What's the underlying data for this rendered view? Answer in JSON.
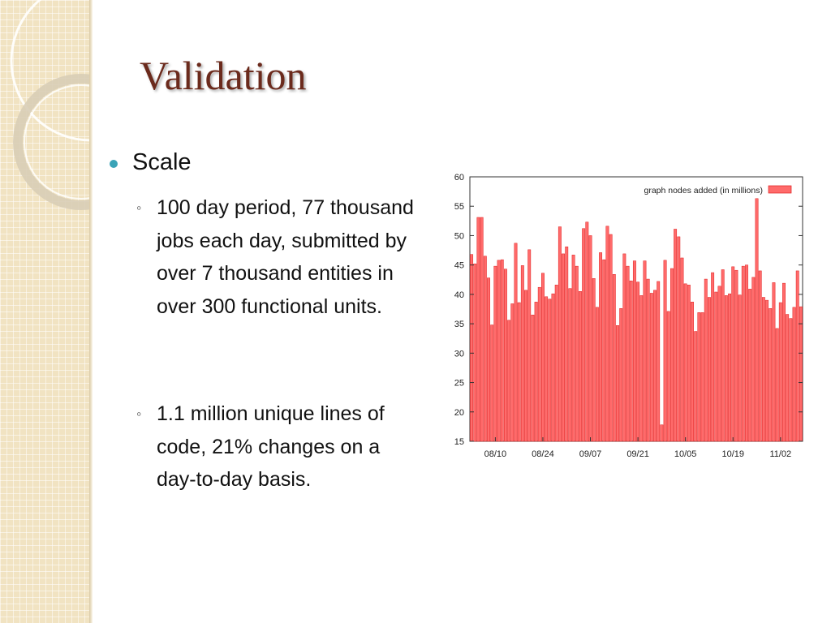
{
  "slide": {
    "title": "Validation",
    "bullet": "Scale",
    "sub_bullets": [
      "100 day period, 77 thousand jobs each day, submitted by over 7 thousand entities in over 300 functional units.",
      "1.1 million unique lines of code, 21% changes on a day-to-day basis."
    ],
    "sub_marker": "◦"
  },
  "colors": {
    "title": "#6b2a1c",
    "bullet_dot": "#3aa3b7",
    "bar_fill": "#ff6b6b",
    "bar_stroke": "#e02020"
  },
  "chart_data": {
    "type": "bar",
    "series_name": "graph nodes added (in millions)",
    "legend_position": "top-right",
    "ylim": [
      15,
      60
    ],
    "yticks": [
      "15",
      "20",
      "25",
      "30",
      "35",
      "40",
      "45",
      "50",
      "55",
      "60"
    ],
    "xtick_labels": [
      "08/10",
      "08/24",
      "09/07",
      "09/21",
      "10/05",
      "10/19",
      "11/02"
    ],
    "grid": false,
    "values": [
      46.8,
      45.2,
      53.1,
      53.1,
      46.5,
      42.8,
      34.8,
      44.8,
      45.8,
      45.9,
      44.3,
      35.6,
      38.4,
      48.7,
      38.6,
      44.9,
      40.7,
      47.6,
      36.5,
      38.7,
      41.2,
      43.6,
      39.6,
      39.2,
      40.1,
      41.6,
      51.5,
      46.9,
      48.1,
      41.0,
      46.7,
      44.8,
      40.5,
      51.2,
      52.3,
      50.0,
      42.7,
      37.8,
      47.1,
      45.9,
      51.6,
      50.2,
      43.4,
      34.7,
      37.6,
      46.9,
      44.8,
      42.3,
      45.7,
      42.1,
      39.8,
      45.7,
      42.6,
      40.2,
      40.7,
      42.2,
      17.8,
      45.8,
      37.1,
      44.4,
      51.1,
      49.8,
      46.2,
      41.8,
      41.6,
      38.7,
      33.7,
      36.9,
      36.9,
      42.6,
      39.5,
      43.7,
      40.4,
      41.4,
      44.2,
      39.8,
      40.1,
      44.7,
      44.1,
      39.9,
      44.8,
      45.0,
      40.9,
      42.9,
      56.3,
      44.0,
      39.5,
      39.0,
      37.6,
      42.0,
      34.2,
      38.6,
      41.9,
      36.6,
      35.9,
      37.8,
      44.0,
      37.9
    ]
  }
}
